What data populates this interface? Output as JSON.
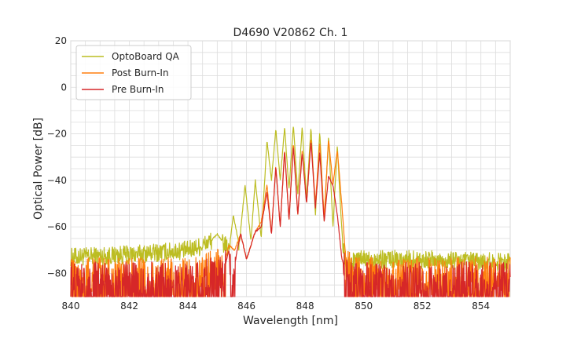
{
  "chart_data": {
    "type": "line",
    "title": "D4690 V20862 Ch. 1",
    "xlabel": "Wavelength [nm]",
    "ylabel": "Optical Power [dB]",
    "xlim": [
      840,
      855
    ],
    "ylim": [
      -90,
      20
    ],
    "xticks": [
      840,
      842,
      844,
      846,
      848,
      850,
      852,
      854
    ],
    "yticks": [
      20,
      0,
      -20,
      -40,
      -60,
      -80
    ],
    "grid": true,
    "legend_position": "top-left",
    "series": [
      {
        "name": "OptoBoard QA",
        "color": "#bcbd22",
        "floor": -74,
        "noise": 4,
        "x": [
          840,
          842,
          844,
          844.5,
          844.8,
          845.0,
          845.2,
          845.4,
          845.55,
          845.75,
          845.95,
          846.15,
          846.3,
          846.5,
          846.7,
          846.85,
          847.0,
          847.15,
          847.3,
          847.45,
          847.6,
          847.75,
          847.9,
          848.05,
          848.2,
          848.35,
          848.5,
          848.65,
          848.8,
          848.95,
          849.1,
          849.2,
          849.3,
          849.45,
          849.6,
          850,
          852,
          854,
          855
        ],
        "y": [
          -73,
          -72,
          -70,
          -68,
          -66,
          -63,
          -67,
          -70,
          -55,
          -68,
          -42,
          -66,
          -40,
          -65,
          -23,
          -40,
          -18,
          -40,
          -17,
          -44,
          -16,
          -46,
          -17,
          -48,
          -17,
          -55,
          -19,
          -58,
          -21,
          -60,
          -25,
          -50,
          -70,
          -78,
          -75,
          -74,
          -74,
          -75,
          -75
        ]
      },
      {
        "name": "Post Burn-In",
        "color": "#ff7f0e",
        "floor": -82,
        "noise": 9,
        "x": [
          840,
          844,
          845.2,
          845.4,
          845.6,
          845.8,
          846.0,
          846.3,
          846.5,
          846.7,
          846.85,
          847.0,
          847.15,
          847.3,
          847.45,
          847.6,
          847.75,
          847.9,
          848.05,
          848.2,
          848.35,
          848.5,
          848.65,
          848.8,
          848.95,
          849.1,
          849.25,
          849.4,
          849.6,
          850,
          852,
          855
        ],
        "y": [
          -82,
          -82,
          -78,
          -68,
          -70,
          -63,
          -74,
          -62,
          -58,
          -42,
          -63,
          -34,
          -60,
          -27,
          -57,
          -24,
          -55,
          -27,
          -50,
          -22,
          -50,
          -24,
          -56,
          -22,
          -42,
          -27,
          -50,
          -76,
          -82,
          -82,
          -82,
          -82
        ]
      },
      {
        "name": "Pre Burn-In",
        "color": "#d62728",
        "floor": -84,
        "noise": 9,
        "x": [
          840,
          844,
          845.2,
          845.4,
          845.5,
          845.65,
          845.8,
          846.0,
          846.3,
          846.5,
          846.7,
          846.85,
          847.0,
          847.15,
          847.3,
          847.45,
          847.6,
          847.75,
          847.9,
          848.05,
          848.2,
          848.35,
          848.5,
          848.65,
          848.8,
          848.95,
          849.1,
          849.25,
          849.4,
          849.6,
          850,
          852,
          855
        ],
        "y": [
          -84,
          -84,
          -80,
          -70,
          -90,
          -72,
          -63,
          -74,
          -62,
          -60,
          -45,
          -63,
          -34,
          -60,
          -27,
          -57,
          -25,
          -55,
          -28,
          -50,
          -23,
          -52,
          -28,
          -58,
          -38,
          -42,
          -55,
          -73,
          -82,
          -84,
          -84,
          -84,
          -84
        ]
      }
    ]
  }
}
